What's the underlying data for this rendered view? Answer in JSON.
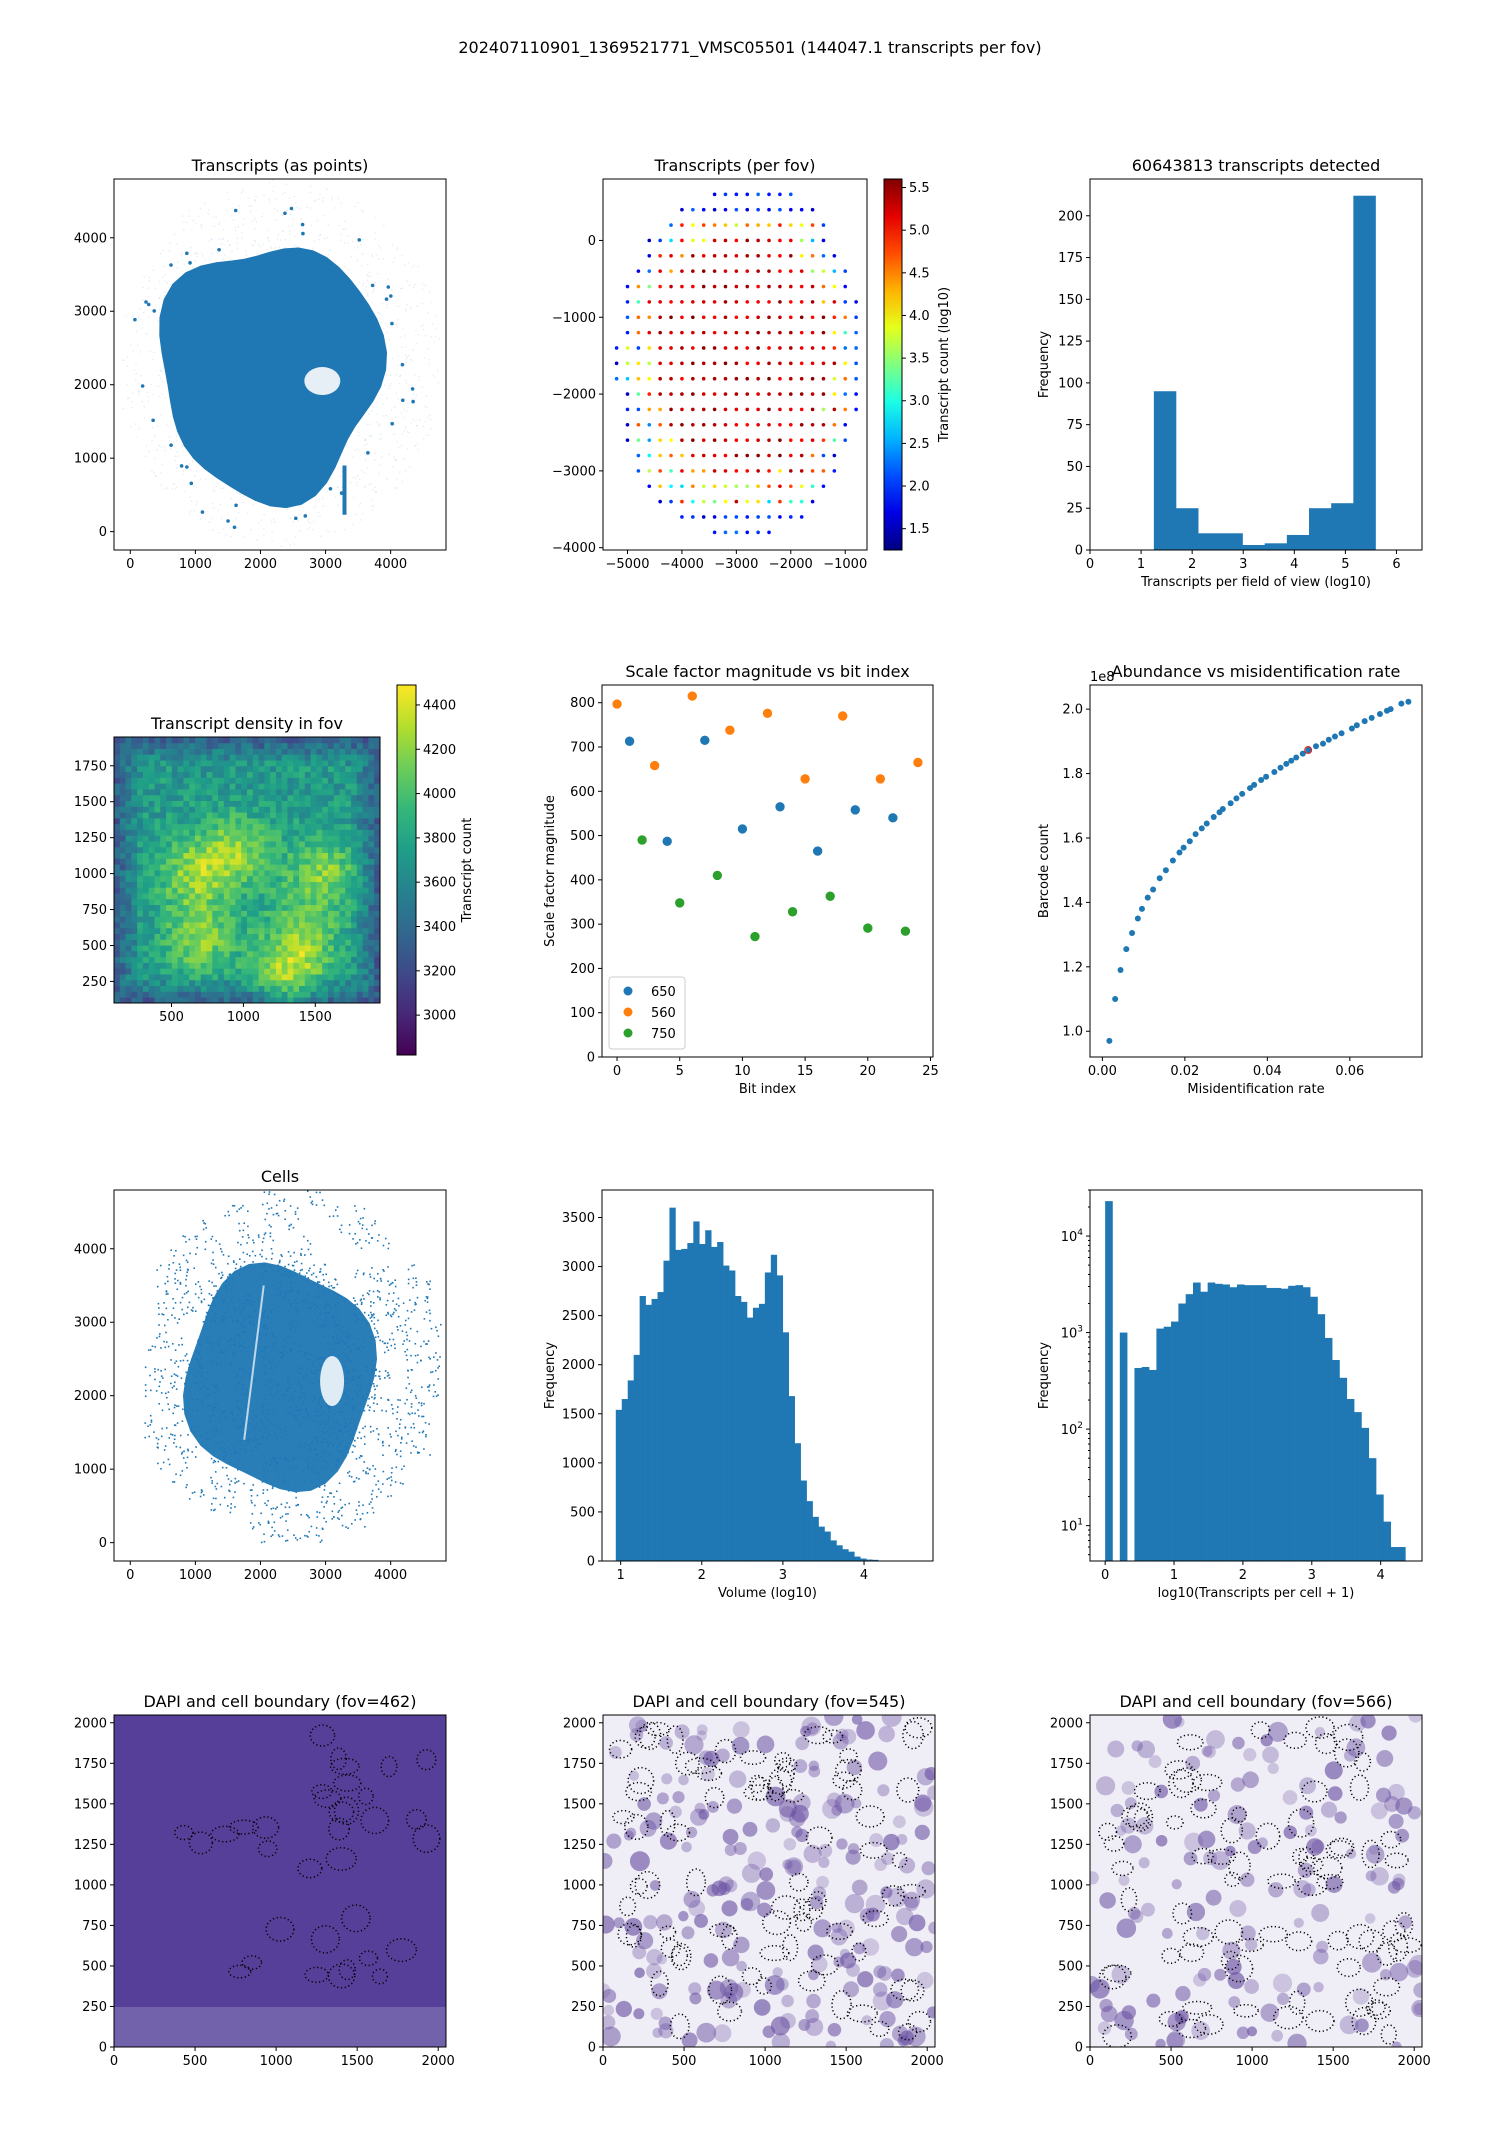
{
  "suptitle": "202407110901_1369521771_VMSC05501 (144047.1 transcripts per fov)",
  "colors": {
    "blue": "#1f77b4",
    "orange": "#ff7f0e",
    "green": "#2ca02c",
    "highlight": "#d62728",
    "dapi_dark": "#3f007d"
  },
  "chart_data": [
    {
      "id": "transcripts-points",
      "type": "scatter",
      "title": "Transcripts (as points)",
      "xlim": [
        -250,
        4850
      ],
      "ylim": [
        -250,
        4800
      ],
      "xticks": [
        0,
        1000,
        2000,
        3000,
        4000
      ],
      "yticks": [
        0,
        1000,
        2000,
        3000,
        4000
      ],
      "description": "dense blob of transcript points, roughly circular, center ~ (2100, 2200), radius ~1700"
    },
    {
      "id": "transcripts-per-fov",
      "type": "scatter",
      "title": "Transcripts (per fov)",
      "xlim": [
        -5450,
        -600
      ],
      "ylim": [
        -4030,
        800
      ],
      "xticks": [
        -5000,
        -4000,
        -3000,
        -2000,
        -1000
      ],
      "yticks": [
        0,
        -1000,
        -2000,
        -3000,
        -4000
      ],
      "grid_step": 200,
      "rows": [
        {
          "y": 600,
          "x_start": -3400,
          "x_end": -2000
        },
        {
          "y": 400,
          "x_start": -4000,
          "x_end": -1600
        },
        {
          "y": 200,
          "x_start": -4200,
          "x_end": -1400
        },
        {
          "y": 0,
          "x_start": -4600,
          "x_end": -1400
        },
        {
          "y": -200,
          "x_start": -4600,
          "x_end": -1200
        },
        {
          "y": -400,
          "x_start": -4800,
          "x_end": -1000
        },
        {
          "y": -600,
          "x_start": -5000,
          "x_end": -1000
        },
        {
          "y": -800,
          "x_start": -5000,
          "x_end": -800
        },
        {
          "y": -1000,
          "x_start": -5000,
          "x_end": -800
        },
        {
          "y": -1200,
          "x_start": -5000,
          "x_end": -800
        },
        {
          "y": -1400,
          "x_start": -5200,
          "x_end": -800
        },
        {
          "y": -1600,
          "x_start": -5200,
          "x_end": -800
        },
        {
          "y": -1800,
          "x_start": -5200,
          "x_end": -800
        },
        {
          "y": -2000,
          "x_start": -5000,
          "x_end": -800
        },
        {
          "y": -2200,
          "x_start": -5000,
          "x_end": -800
        },
        {
          "y": -2400,
          "x_start": -5000,
          "x_end": -1000
        },
        {
          "y": -2600,
          "x_start": -5000,
          "x_end": -1000
        },
        {
          "y": -2800,
          "x_start": -4800,
          "x_end": -1200
        },
        {
          "y": -3000,
          "x_start": -4800,
          "x_end": -1200
        },
        {
          "y": -3200,
          "x_start": -4600,
          "x_end": -1400
        },
        {
          "y": -3400,
          "x_start": -4400,
          "x_end": -1600
        },
        {
          "y": -3600,
          "x_start": -4000,
          "x_end": -1800
        },
        {
          "y": -3800,
          "x_start": -3400,
          "x_end": -2400
        }
      ],
      "center": [
        -2900,
        -1500
      ],
      "colorbar": {
        "label": "Transcript count (log10)",
        "range": [
          1.25,
          5.6
        ],
        "ticks": [
          "1.5",
          "2.0",
          "2.5",
          "3.0",
          "3.5",
          "4.0",
          "4.5",
          "5.0",
          "5.5"
        ],
        "colormap": "jet"
      }
    },
    {
      "id": "transcripts-histogram",
      "type": "bar",
      "title": "60643813 transcripts detected",
      "xlabel": "Transcripts per field of view (log10)",
      "ylabel": "Frequency",
      "xlim": [
        0,
        6.5
      ],
      "ylim": [
        0,
        222
      ],
      "xticks": [
        "0",
        "1",
        "2",
        "3",
        "4",
        "5",
        "6"
      ],
      "yticks": [
        "0",
        "25",
        "50",
        "75",
        "100",
        "125",
        "150",
        "175",
        "200"
      ],
      "bin_edges": [
        1.25,
        1.684,
        2.118,
        2.552,
        2.986,
        3.42,
        3.854,
        4.288,
        4.722,
        5.156,
        5.59
      ],
      "values": [
        95,
        25,
        10,
        10,
        3,
        4,
        9,
        25,
        28,
        212
      ]
    },
    {
      "id": "density-heatmap",
      "type": "heatmap",
      "title": "Transcript density in fov",
      "xlim": [
        100,
        1950
      ],
      "ylim": [
        100,
        1950
      ],
      "xticks": [
        "500",
        "1000",
        "1500"
      ],
      "yticks": [
        "250",
        "500",
        "750",
        "1000",
        "1250",
        "1500",
        "1750"
      ],
      "value_range": [
        2820,
        4490
      ],
      "hotspots": [
        [
          950,
          1150
        ],
        [
          650,
          1000
        ],
        [
          1550,
          1000
        ],
        [
          700,
          550
        ],
        [
          1400,
          550
        ],
        [
          1300,
          250
        ]
      ],
      "colorbar": {
        "label": "Transcript count",
        "ticks": [
          "3000",
          "3200",
          "3400",
          "3600",
          "3800",
          "4000",
          "4200",
          "4400"
        ],
        "colormap": "viridis"
      }
    },
    {
      "id": "scale-factor-scatter",
      "type": "scatter",
      "title": "Scale factor magnitude vs bit index",
      "xlabel": "Bit index",
      "ylabel": "Scale factor magnitude",
      "xlim": [
        -1.2,
        25.2
      ],
      "ylim": [
        0,
        840
      ],
      "xticks": [
        "0",
        "5",
        "10",
        "15",
        "20",
        "25"
      ],
      "yticks": [
        "0",
        "100",
        "200",
        "300",
        "400",
        "500",
        "600",
        "700",
        "800"
      ],
      "legend": "lower-left",
      "series": [
        {
          "name": "650",
          "color": "#1f77b4",
          "x": [
            1,
            4,
            7,
            10,
            13,
            16,
            19,
            22
          ],
          "y": [
            713,
            487,
            715,
            515,
            565,
            465,
            558,
            540
          ]
        },
        {
          "name": "560",
          "color": "#ff7f0e",
          "x": [
            0,
            3,
            6,
            9,
            12,
            15,
            18,
            21,
            24
          ],
          "y": [
            797,
            658,
            815,
            738,
            776,
            628,
            770,
            628,
            665
          ]
        },
        {
          "name": "750",
          "color": "#2ca02c",
          "x": [
            2,
            5,
            8,
            11,
            14,
            17,
            20,
            23
          ],
          "y": [
            490,
            348,
            410,
            272,
            328,
            363,
            291,
            284
          ]
        }
      ]
    },
    {
      "id": "abundance-scatter",
      "type": "scatter",
      "title": "Abundance vs misidentification rate",
      "xlabel": "Misidentification rate",
      "ylabel": "Barcode count",
      "offset_label": "1e8",
      "xlim": [
        -0.003,
        0.0775
      ],
      "ylim": [
        0.92,
        2.075
      ],
      "xticks": [
        "0.00",
        "0.02",
        "0.04",
        "0.06"
      ],
      "yticks": [
        "1.0",
        "1.2",
        "1.4",
        "1.6",
        "1.8",
        "2.0"
      ],
      "x": [
        0.0017,
        0.0031,
        0.0044,
        0.0058,
        0.0072,
        0.0086,
        0.0096,
        0.011,
        0.0123,
        0.0139,
        0.0154,
        0.0171,
        0.0187,
        0.0197,
        0.0212,
        0.0226,
        0.0241,
        0.0253,
        0.027,
        0.0284,
        0.0292,
        0.0311,
        0.0325,
        0.0339,
        0.0358,
        0.0368,
        0.0385,
        0.0397,
        0.0417,
        0.0432,
        0.0446,
        0.0458,
        0.047,
        0.0486,
        0.05,
        0.0518,
        0.0535,
        0.0549,
        0.0564,
        0.058,
        0.0605,
        0.0617,
        0.0636,
        0.0653,
        0.0673,
        0.069,
        0.0699,
        0.0725,
        0.0742
      ],
      "y": [
        0.97,
        1.1,
        1.19,
        1.255,
        1.305,
        1.35,
        1.38,
        1.415,
        1.44,
        1.475,
        1.5,
        1.53,
        1.555,
        1.57,
        1.59,
        1.612,
        1.63,
        1.645,
        1.665,
        1.68,
        1.69,
        1.708,
        1.723,
        1.737,
        1.755,
        1.765,
        1.78,
        1.79,
        1.805,
        1.818,
        1.83,
        1.84,
        1.85,
        1.862,
        1.873,
        1.885,
        1.893,
        1.905,
        1.915,
        1.925,
        1.94,
        1.95,
        1.963,
        1.973,
        1.985,
        1.995,
        2.0,
        2.017,
        2.023
      ],
      "highlight": {
        "x": 0.0499,
        "y": 1.873,
        "color": "#d62728"
      }
    },
    {
      "id": "cells-scatter",
      "type": "scatter",
      "title": "Cells",
      "xlim": [
        -250,
        4850
      ],
      "ylim": [
        -250,
        4800
      ],
      "xticks": [
        "0",
        "1000",
        "2000",
        "3000",
        "4000"
      ],
      "yticks": [
        "0",
        "1000",
        "2000",
        "3000",
        "4000"
      ],
      "description": "cell centroids: dense inner tissue ~ center (2350, 2200) radius 1550, sparse grid-like outer ring to radius ~2300"
    },
    {
      "id": "volume-histogram",
      "type": "bar",
      "title": "",
      "xlabel": "Volume (log10)",
      "ylabel": "Frequency",
      "xlim": [
        0.77,
        4.85
      ],
      "ylim": [
        0,
        3780
      ],
      "xticks": [
        "1",
        "2",
        "3",
        "4"
      ],
      "yticks": [
        "0",
        "500",
        "1000",
        "1500",
        "2000",
        "2500",
        "3000",
        "3500"
      ],
      "bin_start": 0.94,
      "bin_width": 0.0735,
      "values": [
        1540,
        1650,
        1840,
        2100,
        2700,
        2610,
        2670,
        2740,
        3060,
        3600,
        3170,
        3180,
        3240,
        3460,
        3230,
        3370,
        3200,
        3250,
        3010,
        2960,
        2700,
        2640,
        2480,
        2580,
        2620,
        2940,
        3120,
        2910,
        2330,
        1680,
        1200,
        820,
        610,
        450,
        350,
        300,
        210,
        160,
        120,
        95,
        45,
        25,
        15,
        12,
        3,
        2,
        1,
        1
      ]
    },
    {
      "id": "transcripts-per-cell-histogram",
      "type": "bar",
      "title": "",
      "xlabel": "log10(Transcripts per cell + 1)",
      "ylabel": "Frequency",
      "yscale": "log",
      "xlim": [
        -0.22,
        4.6
      ],
      "ylim": [
        4.3,
        30000
      ],
      "xticks": [
        "0",
        "1",
        "2",
        "3",
        "4"
      ],
      "yticks": [
        {
          "base": "10",
          "exp": "1"
        },
        {
          "base": "10",
          "exp": "2"
        },
        {
          "base": "10",
          "exp": "3"
        },
        {
          "base": "10",
          "exp": "4"
        }
      ],
      "bin_start": 0,
      "bin_width": 0.1063,
      "values": [
        23000,
        0,
        1000,
        0,
        430,
        440,
        410,
        1100,
        1150,
        1300,
        2000,
        2500,
        3300,
        2650,
        3300,
        3200,
        3150,
        2950,
        3150,
        3100,
        3100,
        3100,
        2900,
        2900,
        2850,
        3050,
        3100,
        2950,
        2350,
        1550,
        880,
        520,
        340,
        205,
        150,
        103,
        50,
        21,
        11,
        6,
        6
      ]
    },
    {
      "id": "dapi-462",
      "type": "heatmap",
      "title": "DAPI and cell boundary (fov=462)",
      "xlim": [
        0,
        2048
      ],
      "ylim": [
        0,
        2048
      ],
      "xticks": [
        "0",
        "500",
        "1000",
        "1500",
        "2000"
      ],
      "yticks": [
        "0",
        "250",
        "500",
        "750",
        "1000",
        "1250",
        "1500",
        "1750",
        "2000"
      ],
      "style": "uniform-dark"
    },
    {
      "id": "dapi-545",
      "type": "heatmap",
      "title": "DAPI and cell boundary (fov=545)",
      "xlim": [
        0,
        2048
      ],
      "ylim": [
        0,
        2048
      ],
      "xticks": [
        "0",
        "500",
        "1000",
        "1500",
        "2000"
      ],
      "yticks": [
        "0",
        "250",
        "500",
        "750",
        "1000",
        "1250",
        "1500",
        "1750",
        "2000"
      ],
      "style": "dense-nuclei"
    },
    {
      "id": "dapi-566",
      "type": "heatmap",
      "title": "DAPI and cell boundary (fov=566)",
      "xlim": [
        0,
        2048
      ],
      "ylim": [
        0,
        2048
      ],
      "xticks": [
        "0",
        "500",
        "1000",
        "1500",
        "2000"
      ],
      "yticks": [
        "0",
        "250",
        "500",
        "750",
        "1000",
        "1250",
        "1500",
        "1750",
        "2000"
      ],
      "style": "sparse-nuclei"
    }
  ]
}
